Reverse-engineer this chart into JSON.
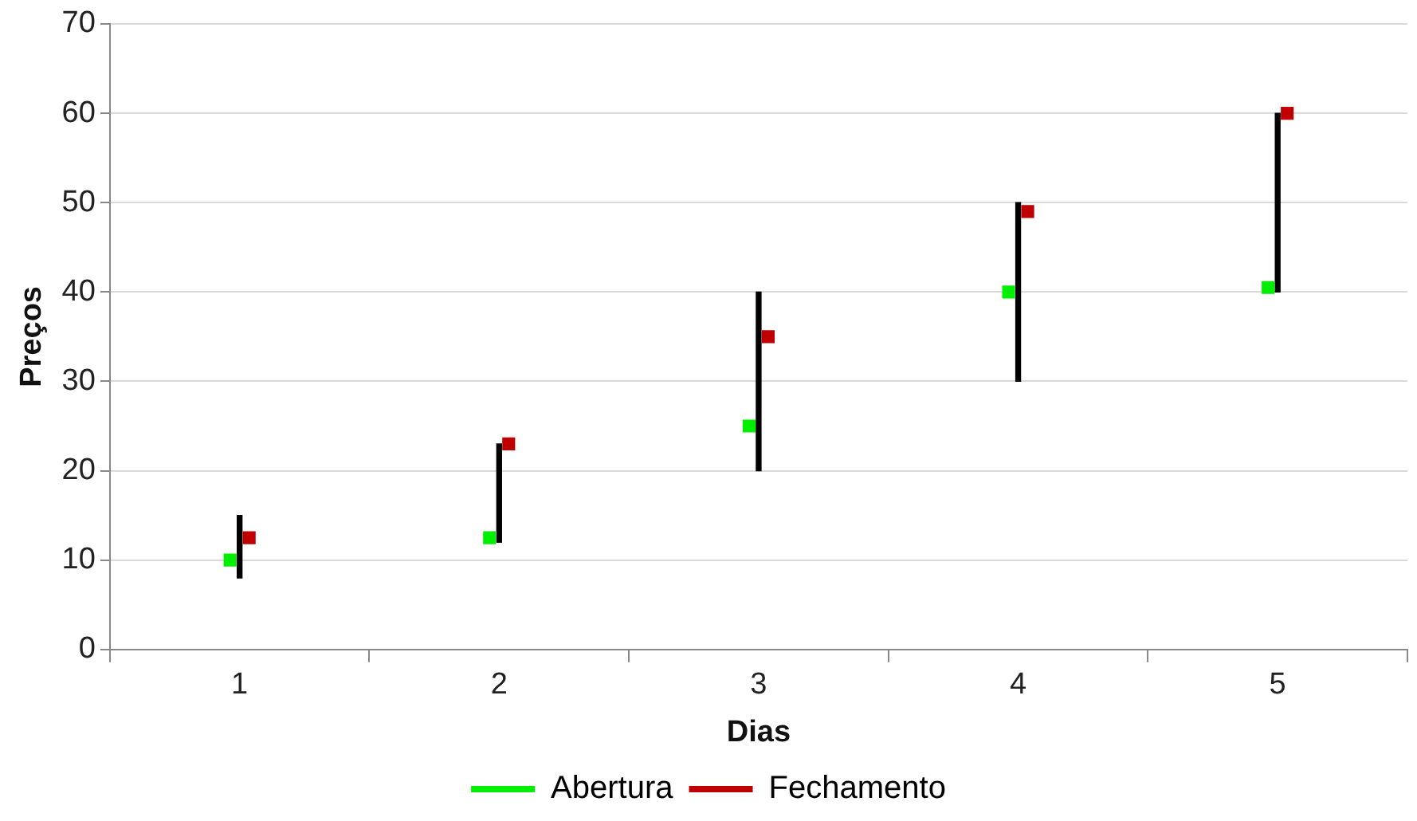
{
  "chart_data": {
    "type": "bar",
    "xlabel": "Dias",
    "ylabel": "Preços",
    "categories": [
      "1",
      "2",
      "3",
      "4",
      "5"
    ],
    "series": [
      {
        "color": "#000000",
        "base": [
          8,
          12,
          20,
          30,
          40
        ],
        "values": [
          7,
          11,
          20,
          20,
          20
        ]
      },
      {
        "type": "scatter",
        "marker": "square",
        "name": "Abertura",
        "color": "#00ee00",
        "x": [
          "1",
          "2",
          "3",
          "4",
          "5"
        ],
        "values": [
          10,
          12.5,
          25,
          40,
          40.5
        ]
      },
      {
        "type": "scatter",
        "marker": "square",
        "name": "Fechamento",
        "color": "#c00000",
        "x": [
          "1",
          "2",
          "3",
          "4",
          "5"
        ],
        "values": [
          12.5,
          23,
          35,
          49,
          60
        ]
      }
    ],
    "ylim": [
      0,
      70
    ],
    "yticks": [
      0,
      10,
      20,
      30,
      40,
      50,
      60,
      70
    ],
    "grid": "y",
    "legend": "bottom"
  }
}
